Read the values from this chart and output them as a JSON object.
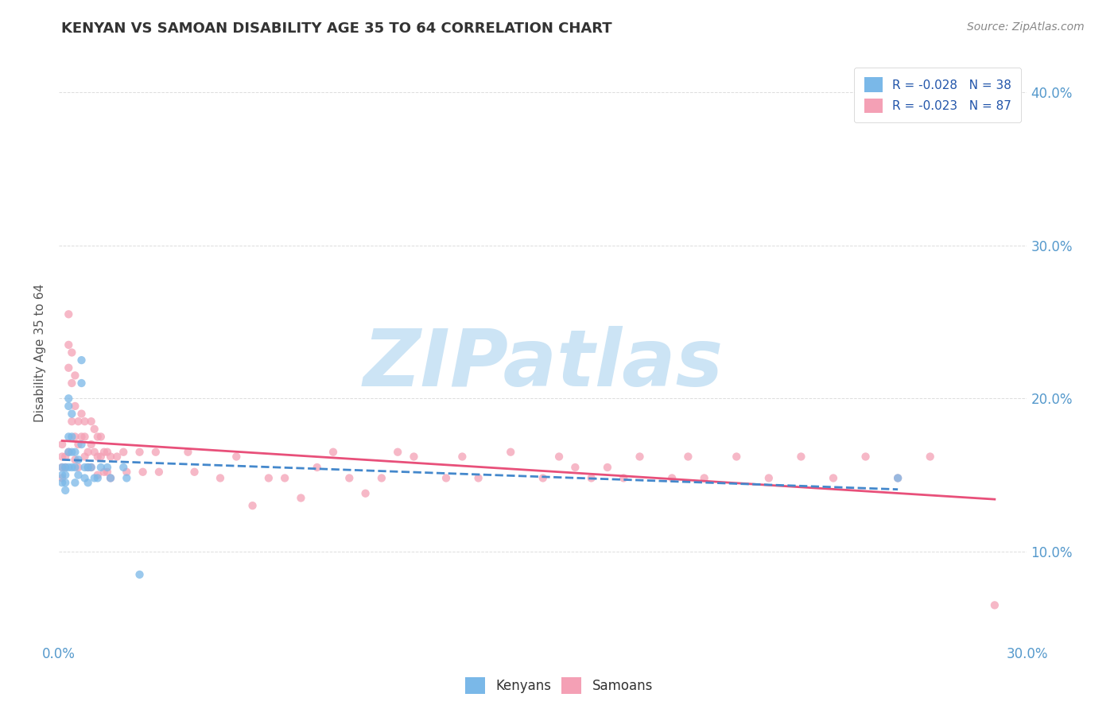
{
  "title": "KENYAN VS SAMOAN DISABILITY AGE 35 TO 64 CORRELATION CHART",
  "source": "Source: ZipAtlas.com",
  "ylabel": "Disability Age 35 to 64",
  "xlim": [
    0.0,
    0.3
  ],
  "ylim": [
    0.04,
    0.42
  ],
  "x_tick_positions": [
    0.0,
    0.05,
    0.1,
    0.15,
    0.2,
    0.25,
    0.3
  ],
  "x_tick_labels": [
    "0.0%",
    "",
    "",
    "",
    "",
    "",
    "30.0%"
  ],
  "y_tick_positions": [
    0.1,
    0.2,
    0.3,
    0.4
  ],
  "y_tick_labels": [
    "10.0%",
    "20.0%",
    "30.0%",
    "40.0%"
  ],
  "kenyan_R": -0.028,
  "kenyan_N": 38,
  "samoan_R": -0.023,
  "samoan_N": 87,
  "kenyan_color": "#7ab8e8",
  "samoan_color": "#f4a0b5",
  "kenyan_line_color": "#4488cc",
  "samoan_line_color": "#e8507a",
  "watermark_text": "ZIPatlas",
  "watermark_color": "#cce4f5",
  "tick_label_color": "#5599cc",
  "grid_color": "#dddddd",
  "title_color": "#333333",
  "source_color": "#888888",
  "legend_label_color": "#2255aa",
  "kenyan_x": [
    0.001,
    0.001,
    0.001,
    0.002,
    0.002,
    0.002,
    0.002,
    0.003,
    0.003,
    0.003,
    0.003,
    0.003,
    0.004,
    0.004,
    0.004,
    0.004,
    0.005,
    0.005,
    0.005,
    0.006,
    0.006,
    0.007,
    0.007,
    0.007,
    0.008,
    0.008,
    0.009,
    0.009,
    0.01,
    0.011,
    0.012,
    0.013,
    0.015,
    0.016,
    0.02,
    0.021,
    0.025,
    0.26
  ],
  "kenyan_y": [
    0.155,
    0.15,
    0.145,
    0.155,
    0.15,
    0.145,
    0.14,
    0.2,
    0.195,
    0.175,
    0.165,
    0.155,
    0.19,
    0.175,
    0.165,
    0.155,
    0.165,
    0.155,
    0.145,
    0.16,
    0.15,
    0.225,
    0.21,
    0.17,
    0.155,
    0.148,
    0.155,
    0.145,
    0.155,
    0.148,
    0.148,
    0.155,
    0.155,
    0.148,
    0.155,
    0.148,
    0.085,
    0.148
  ],
  "samoan_x": [
    0.001,
    0.001,
    0.001,
    0.001,
    0.002,
    0.002,
    0.003,
    0.003,
    0.003,
    0.003,
    0.004,
    0.004,
    0.004,
    0.005,
    0.005,
    0.005,
    0.005,
    0.006,
    0.006,
    0.006,
    0.007,
    0.007,
    0.008,
    0.008,
    0.008,
    0.009,
    0.009,
    0.01,
    0.01,
    0.01,
    0.011,
    0.011,
    0.012,
    0.012,
    0.012,
    0.013,
    0.013,
    0.014,
    0.014,
    0.015,
    0.015,
    0.016,
    0.016,
    0.018,
    0.02,
    0.021,
    0.025,
    0.026,
    0.03,
    0.031,
    0.04,
    0.042,
    0.05,
    0.055,
    0.06,
    0.065,
    0.07,
    0.075,
    0.08,
    0.085,
    0.09,
    0.095,
    0.1,
    0.105,
    0.11,
    0.12,
    0.125,
    0.13,
    0.14,
    0.15,
    0.155,
    0.16,
    0.165,
    0.17,
    0.175,
    0.18,
    0.19,
    0.195,
    0.2,
    0.21,
    0.22,
    0.23,
    0.24,
    0.25,
    0.26,
    0.27,
    0.29
  ],
  "samoan_y": [
    0.17,
    0.162,
    0.155,
    0.148,
    0.162,
    0.155,
    0.255,
    0.235,
    0.22,
    0.165,
    0.23,
    0.21,
    0.185,
    0.215,
    0.195,
    0.175,
    0.16,
    0.185,
    0.17,
    0.155,
    0.19,
    0.175,
    0.185,
    0.175,
    0.162,
    0.165,
    0.155,
    0.185,
    0.17,
    0.155,
    0.18,
    0.165,
    0.175,
    0.162,
    0.15,
    0.175,
    0.162,
    0.165,
    0.152,
    0.165,
    0.152,
    0.162,
    0.148,
    0.162,
    0.165,
    0.152,
    0.165,
    0.152,
    0.165,
    0.152,
    0.165,
    0.152,
    0.148,
    0.162,
    0.13,
    0.148,
    0.148,
    0.135,
    0.155,
    0.165,
    0.148,
    0.138,
    0.148,
    0.165,
    0.162,
    0.148,
    0.162,
    0.148,
    0.165,
    0.148,
    0.162,
    0.155,
    0.148,
    0.155,
    0.148,
    0.162,
    0.148,
    0.162,
    0.148,
    0.162,
    0.148,
    0.162,
    0.148,
    0.162,
    0.148,
    0.162,
    0.065
  ]
}
